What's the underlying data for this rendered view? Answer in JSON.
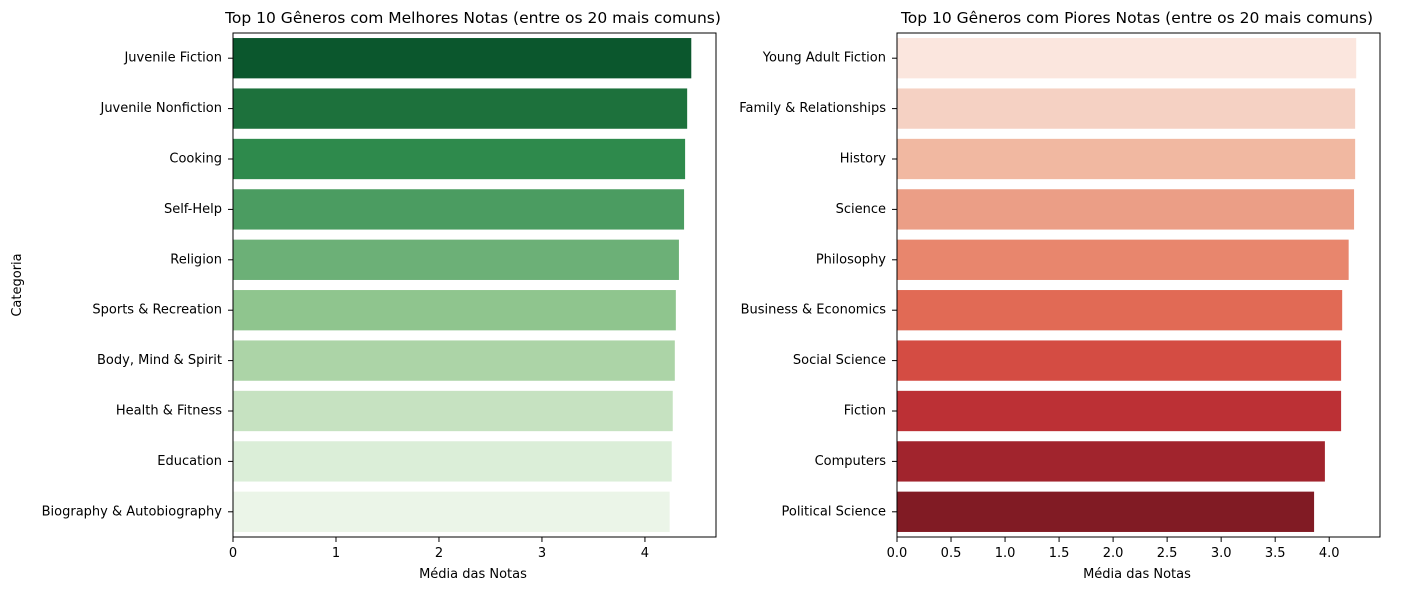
{
  "chart_data": [
    {
      "type": "bar",
      "orientation": "horizontal",
      "title": "Top 10 Gêneros com Melhores Notas (entre os 20 mais comuns)",
      "xlabel": "Média das Notas",
      "ylabel": "Categoria",
      "xlim": [
        0,
        4.69
      ],
      "xticks": [
        0,
        1,
        2,
        3,
        4
      ],
      "xtick_labels": [
        "0",
        "1",
        "2",
        "3",
        "4"
      ],
      "grid": false,
      "palette": "Greens",
      "categories": [
        "Juvenile Fiction",
        "Juvenile Nonfiction",
        "Cooking",
        "Self-Help",
        "Religion",
        "Sports & Recreation",
        "Body, Mind & Spirit",
        "Health & Fitness",
        "Education",
        "Biography & Autobiography"
      ],
      "values": [
        4.45,
        4.41,
        4.39,
        4.38,
        4.33,
        4.3,
        4.29,
        4.27,
        4.26,
        4.24
      ],
      "colors": [
        "#0b572d",
        "#1d713c",
        "#2e8a4c",
        "#4b9c61",
        "#6cb077",
        "#8fc58e",
        "#acd4a7",
        "#c6e2c1",
        "#dbeed8",
        "#ebf5e8"
      ]
    },
    {
      "type": "bar",
      "orientation": "horizontal",
      "title": "Top 10 Gêneros com Piores Notas (entre os 20 mais comuns)",
      "xlabel": "Média das Notas",
      "ylabel": "",
      "xlim": [
        0,
        4.47
      ],
      "xticks": [
        0,
        0.5,
        1.0,
        1.5,
        2.0,
        2.5,
        3.0,
        3.5,
        4.0
      ],
      "xtick_labels": [
        "0.0",
        "0.5",
        "1.0",
        "1.5",
        "2.0",
        "2.5",
        "3.0",
        "3.5",
        "4.0"
      ],
      "grid": false,
      "palette": "Reds",
      "categories": [
        "Young Adult Fiction",
        "Family & Relationships",
        "History",
        "Science",
        "Philosophy",
        "Business & Economics",
        "Social Science",
        "Fiction",
        "Computers",
        "Political Science"
      ],
      "values": [
        4.25,
        4.24,
        4.24,
        4.23,
        4.18,
        4.12,
        4.11,
        4.11,
        3.96,
        3.86
      ],
      "colors": [
        "#fbe6de",
        "#f5d1c3",
        "#f1b8a1",
        "#eb9e86",
        "#e8866d",
        "#e16a55",
        "#d44c43",
        "#bc3035",
        "#a1242d",
        "#811b24"
      ]
    }
  ]
}
